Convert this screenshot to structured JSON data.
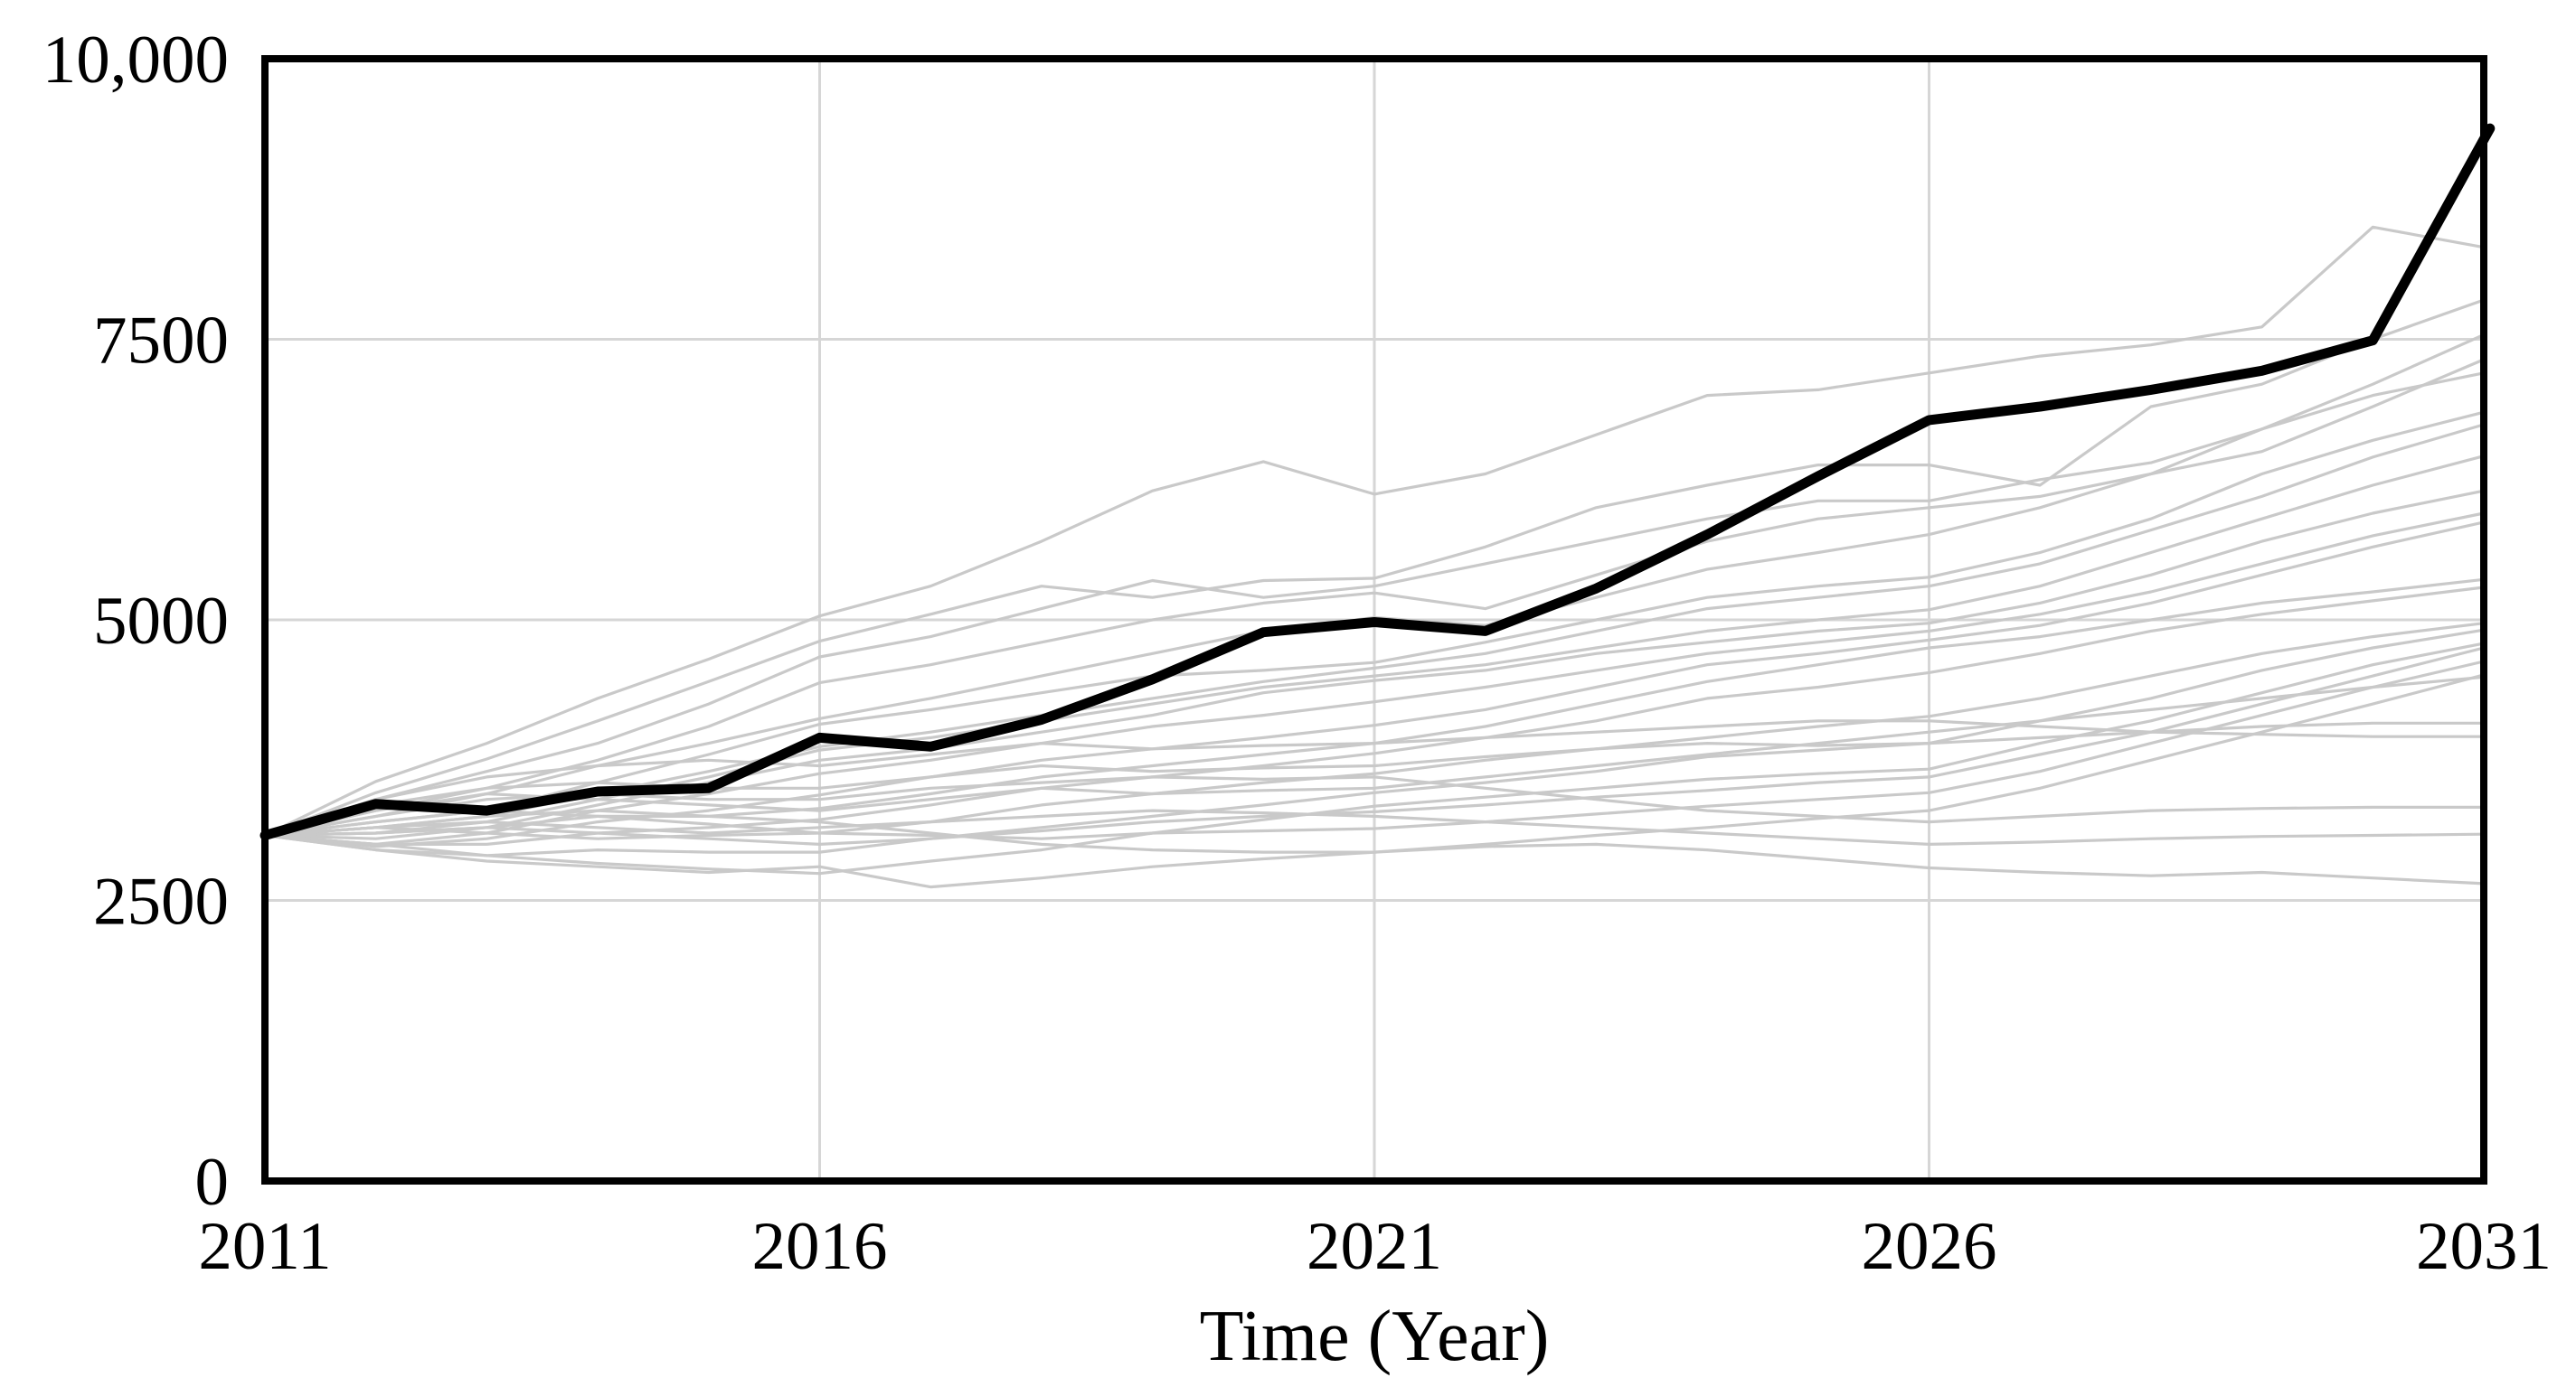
{
  "chart_data": {
    "type": "line",
    "title": "",
    "xlabel": "Time (Year)",
    "ylabel": "",
    "xlim": [
      2011,
      2031
    ],
    "ylim": [
      0,
      10000
    ],
    "x": [
      2011,
      2012,
      2013,
      2014,
      2015,
      2016,
      2017,
      2018,
      2019,
      2020,
      2021,
      2022,
      2023,
      2024,
      2025,
      2026,
      2027,
      2028,
      2029,
      2030,
      2031
    ],
    "x_ticks": [
      2011,
      2016,
      2021,
      2026,
      2031
    ],
    "x_tick_labels": [
      "2011",
      "2016",
      "2021",
      "2026",
      "2031"
    ],
    "y_ticks": [
      0,
      2500,
      5000,
      7500,
      10000
    ],
    "y_tick_labels": [
      "0",
      "2500",
      "5000",
      "7500",
      "10,000"
    ],
    "grid": {
      "on": true,
      "x_values": [
        2016,
        2021,
        2026
      ],
      "y_values": [
        2500,
        5000,
        7500
      ]
    },
    "main_series": {
      "name": "highlighted-run",
      "color": "#000000",
      "end_cap_nub": true,
      "values": [
        3080,
        3360,
        3300,
        3470,
        3500,
        3950,
        3870,
        4110,
        4470,
        4890,
        4980,
        4900,
        5280,
        5760,
        6280,
        6780,
        6900,
        7050,
        7220,
        7490,
        9280
      ]
    },
    "ensemble": {
      "name": "simulation-runs",
      "color": "#c9c9c9",
      "runs": [
        [
          3080,
          3560,
          3900,
          4300,
          4650,
          5035,
          5300,
          5700,
          6150,
          6410,
          6120,
          6300,
          6650,
          7000,
          7050,
          7200,
          7350,
          7450,
          7610,
          8500,
          8320
        ],
        [
          3080,
          3460,
          3760,
          4100,
          4450,
          4810,
          5050,
          5300,
          5200,
          5350,
          5370,
          5650,
          6000,
          6200,
          6380,
          6380,
          6200,
          6900,
          7100,
          7500,
          7850
        ],
        [
          3080,
          3400,
          3650,
          3900,
          4250,
          4670,
          4850,
          5100,
          5350,
          5200,
          5300,
          5500,
          5700,
          5900,
          6060,
          6060,
          6250,
          6400,
          6700,
          7100,
          7540
        ],
        [
          3080,
          3300,
          3500,
          3750,
          4050,
          4440,
          4600,
          4800,
          5000,
          5150,
          5240,
          5100,
          5400,
          5700,
          5900,
          6000,
          6100,
          6300,
          6500,
          6900,
          7320
        ],
        [
          3080,
          3250,
          3450,
          3700,
          3900,
          4120,
          4300,
          4500,
          4700,
          4900,
          5020,
          4950,
          5200,
          5450,
          5600,
          5760,
          6000,
          6300,
          6700,
          7000,
          7200
        ],
        [
          3080,
          3200,
          3300,
          3550,
          3800,
          4070,
          4200,
          4350,
          4500,
          4550,
          4620,
          4800,
          5000,
          5200,
          5300,
          5380,
          5600,
          5900,
          6300,
          6600,
          6850
        ],
        [
          3080,
          3150,
          3250,
          3450,
          3650,
          3870,
          4000,
          4150,
          4300,
          4450,
          4570,
          4700,
          4900,
          5100,
          5200,
          5300,
          5500,
          5800,
          6100,
          6450,
          6740
        ],
        [
          3080,
          3100,
          3200,
          3400,
          3600,
          3840,
          3950,
          4100,
          4250,
          4400,
          4500,
          4600,
          4750,
          4900,
          5000,
          5090,
          5300,
          5600,
          5900,
          6200,
          6460
        ],
        [
          3080,
          3050,
          3150,
          3350,
          3550,
          3750,
          3850,
          4000,
          4150,
          4350,
          4460,
          4550,
          4700,
          4800,
          4900,
          4970,
          5150,
          5400,
          5700,
          5950,
          6150
        ],
        [
          3080,
          3000,
          3100,
          3300,
          3450,
          3630,
          3750,
          3900,
          4050,
          4150,
          4270,
          4400,
          4550,
          4700,
          4800,
          4900,
          5050,
          5250,
          5500,
          5750,
          5950
        ],
        [
          3080,
          2980,
          3050,
          3200,
          3300,
          3440,
          3600,
          3750,
          3850,
          3950,
          4060,
          4200,
          4400,
          4600,
          4700,
          4820,
          4950,
          5150,
          5400,
          5650,
          5870
        ],
        [
          3080,
          3100,
          3150,
          3250,
          3250,
          3320,
          3450,
          3600,
          3700,
          3800,
          3900,
          4050,
          4250,
          4450,
          4600,
          4750,
          4850,
          5000,
          5150,
          5250,
          5360
        ],
        [
          3080,
          3000,
          3000,
          3100,
          3150,
          3220,
          3350,
          3500,
          3600,
          3700,
          3810,
          3950,
          4100,
          4300,
          4400,
          4530,
          4700,
          4900,
          5050,
          5170,
          5290
        ],
        [
          3080,
          3150,
          3100,
          3050,
          3080,
          3100,
          3200,
          3350,
          3450,
          3550,
          3630,
          3750,
          3850,
          3950,
          4050,
          4140,
          4300,
          4500,
          4700,
          4850,
          4970
        ],
        [
          3080,
          2950,
          2900,
          2950,
          2930,
          2930,
          3050,
          3150,
          3250,
          3350,
          3460,
          3550,
          3650,
          3780,
          3840,
          3900,
          4100,
          4300,
          4550,
          4750,
          4910
        ],
        [
          3080,
          3000,
          2900,
          2830,
          2780,
          2740,
          2850,
          2950,
          3100,
          3220,
          3340,
          3420,
          3500,
          3580,
          3630,
          3670,
          3900,
          4100,
          4350,
          4600,
          4790
        ],
        [
          3080,
          3100,
          3150,
          3100,
          3050,
          3000,
          3050,
          3120,
          3200,
          3250,
          3290,
          3350,
          3420,
          3480,
          3550,
          3600,
          3800,
          4000,
          4250,
          4500,
          4750
        ],
        [
          3080,
          3200,
          3300,
          3250,
          3180,
          3100,
          3080,
          3050,
          3100,
          3120,
          3140,
          3200,
          3270,
          3340,
          3400,
          3460,
          3650,
          3900,
          4150,
          4400,
          4630
        ],
        [
          3080,
          3150,
          3250,
          3300,
          3250,
          3200,
          3100,
          3000,
          2950,
          2930,
          2930,
          3000,
          3080,
          3150,
          3230,
          3300,
          3500,
          3750,
          4000,
          4250,
          4510
        ],
        [
          3080,
          3300,
          3450,
          3400,
          3350,
          3300,
          3400,
          3500,
          3450,
          3480,
          3500,
          3600,
          3700,
          3800,
          3900,
          4000,
          4100,
          4200,
          4300,
          4400,
          4490
        ],
        [
          3080,
          3350,
          3500,
          3550,
          3500,
          3500,
          3600,
          3700,
          3650,
          3680,
          3700,
          3780,
          3850,
          3900,
          3880,
          3900,
          3950,
          4000,
          4050,
          4080,
          4080
        ],
        [
          3080,
          3400,
          3600,
          3700,
          3750,
          3700,
          3800,
          3900,
          3850,
          3880,
          3900,
          3950,
          4000,
          4050,
          4100,
          4100,
          4050,
          4000,
          3980,
          3960,
          3960
        ],
        [
          3080,
          3250,
          3400,
          3450,
          3400,
          3400,
          3500,
          3550,
          3600,
          3580,
          3600,
          3500,
          3400,
          3300,
          3250,
          3200,
          3250,
          3300,
          3320,
          3330,
          3330
        ],
        [
          3080,
          3150,
          3200,
          3150,
          3100,
          3150,
          3200,
          3250,
          3300,
          3280,
          3250,
          3200,
          3150,
          3100,
          3050,
          3000,
          3020,
          3050,
          3070,
          3080,
          3090
        ],
        [
          3080,
          2950,
          2850,
          2800,
          2750,
          2800,
          2620,
          2700,
          2800,
          2870,
          2930,
          2980,
          3000,
          2950,
          2870,
          2790,
          2750,
          2720,
          2750,
          2700,
          2650
        ]
      ]
    },
    "legend": {
      "on": false
    }
  },
  "colors": {
    "background": "#ffffff",
    "frame": "#000000",
    "gridline": "#d6d6d6",
    "highlighted_run": "#000000",
    "ensemble_run": "#c9c9c9",
    "tick_label": "#000000"
  }
}
